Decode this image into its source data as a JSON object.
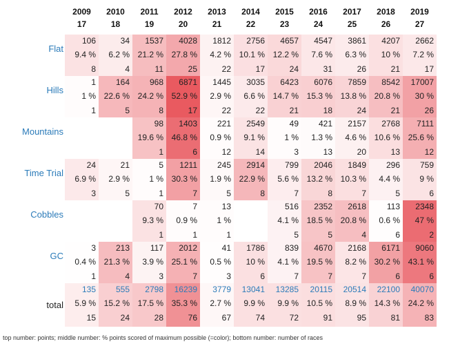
{
  "years": [
    {
      "year": "2009",
      "sub": "17"
    },
    {
      "year": "2010",
      "sub": "18"
    },
    {
      "year": "2011",
      "sub": "19"
    },
    {
      "year": "2012",
      "sub": "20"
    },
    {
      "year": "2013",
      "sub": "21"
    },
    {
      "year": "2014",
      "sub": "22"
    },
    {
      "year": "2015",
      "sub": "23"
    },
    {
      "year": "2016",
      "sub": "24"
    },
    {
      "year": "2017",
      "sub": "25"
    },
    {
      "year": "2018",
      "sub": "26"
    },
    {
      "year": "2019",
      "sub": "27"
    }
  ],
  "rows": [
    {
      "label": "Flat",
      "is_total": false,
      "cells": [
        {
          "points": "106",
          "pct": "9.4 %",
          "races": "8",
          "v": 9.4
        },
        {
          "points": "34",
          "pct": "6.2 %",
          "races": "4",
          "v": 6.2
        },
        {
          "points": "1537",
          "pct": "21.2 %",
          "races": "11",
          "v": 21.2
        },
        {
          "points": "4028",
          "pct": "27.8 %",
          "races": "25",
          "v": 27.8
        },
        {
          "points": "1812",
          "pct": "4.2 %",
          "races": "22",
          "v": 4.2
        },
        {
          "points": "2756",
          "pct": "10.1 %",
          "races": "17",
          "v": 10.1
        },
        {
          "points": "4657",
          "pct": "12.2 %",
          "races": "24",
          "v": 12.2
        },
        {
          "points": "4547",
          "pct": "7.6 %",
          "races": "31",
          "v": 7.6
        },
        {
          "points": "3861",
          "pct": "6.3 %",
          "races": "26",
          "v": 6.3
        },
        {
          "points": "4207",
          "pct": "10 %",
          "races": "21",
          "v": 10
        },
        {
          "points": "2662",
          "pct": "7.2 %",
          "races": "17",
          "v": 7.2
        }
      ]
    },
    {
      "label": "Hills",
      "is_total": false,
      "cells": [
        {
          "points": "1",
          "pct": "1 %",
          "races": "1",
          "v": 1
        },
        {
          "points": "164",
          "pct": "22.6 %",
          "races": "5",
          "v": 22.6
        },
        {
          "points": "968",
          "pct": "24.2 %",
          "races": "8",
          "v": 24.2
        },
        {
          "points": "6871",
          "pct": "52.9 %",
          "races": "17",
          "v": 52.9
        },
        {
          "points": "1445",
          "pct": "2.9 %",
          "races": "22",
          "v": 2.9
        },
        {
          "points": "3035",
          "pct": "6.6 %",
          "races": "22",
          "v": 6.6
        },
        {
          "points": "6423",
          "pct": "14.7 %",
          "races": "21",
          "v": 14.7
        },
        {
          "points": "6076",
          "pct": "15.3 %",
          "races": "18",
          "v": 15.3
        },
        {
          "points": "7859",
          "pct": "13.8 %",
          "races": "24",
          "v": 13.8
        },
        {
          "points": "8542",
          "pct": "20.8 %",
          "races": "21",
          "v": 20.8
        },
        {
          "points": "17007",
          "pct": "30 %",
          "races": "26",
          "v": 30
        }
      ]
    },
    {
      "label": "Mountains",
      "is_total": false,
      "cells": [
        {
          "points": "",
          "pct": "",
          "races": "",
          "v": null
        },
        {
          "points": "",
          "pct": "",
          "races": "",
          "v": null
        },
        {
          "points": "98",
          "pct": "19.6 %",
          "races": "1",
          "v": 19.6
        },
        {
          "points": "1403",
          "pct": "46.8 %",
          "races": "6",
          "v": 46.8
        },
        {
          "points": "221",
          "pct": "0.9 %",
          "races": "12",
          "v": 0.9
        },
        {
          "points": "2549",
          "pct": "9.1 %",
          "races": "14",
          "v": 9.1
        },
        {
          "points": "49",
          "pct": "1 %",
          "races": "3",
          "v": 1
        },
        {
          "points": "421",
          "pct": "1.3 %",
          "races": "13",
          "v": 1.3
        },
        {
          "points": "2157",
          "pct": "4.6 %",
          "races": "20",
          "v": 4.6
        },
        {
          "points": "2768",
          "pct": "10.6 %",
          "races": "13",
          "v": 10.6
        },
        {
          "points": "7111",
          "pct": "25.6 %",
          "races": "12",
          "v": 25.6
        }
      ]
    },
    {
      "label": "Time Trial",
      "is_total": false,
      "cells": [
        {
          "points": "24",
          "pct": "6.9 %",
          "races": "3",
          "v": 6.9
        },
        {
          "points": "21",
          "pct": "2.9 %",
          "races": "5",
          "v": 2.9
        },
        {
          "points": "5",
          "pct": "1 %",
          "races": "1",
          "v": 1
        },
        {
          "points": "1211",
          "pct": "30.3 %",
          "races": "7",
          "v": 30.3
        },
        {
          "points": "245",
          "pct": "1.9 %",
          "races": "5",
          "v": 1.9
        },
        {
          "points": "2914",
          "pct": "22.9 %",
          "races": "8",
          "v": 22.9
        },
        {
          "points": "799",
          "pct": "5.6 %",
          "races": "7",
          "v": 5.6
        },
        {
          "points": "2046",
          "pct": "13.2 %",
          "races": "8",
          "v": 13.2
        },
        {
          "points": "1849",
          "pct": "10.3 %",
          "races": "7",
          "v": 10.3
        },
        {
          "points": "296",
          "pct": "4.4 %",
          "races": "5",
          "v": 4.4
        },
        {
          "points": "759",
          "pct": "9 %",
          "races": "6",
          "v": 9
        }
      ]
    },
    {
      "label": "Cobbles",
      "is_total": false,
      "cells": [
        {
          "points": "",
          "pct": "",
          "races": "",
          "v": null
        },
        {
          "points": "",
          "pct": "",
          "races": "",
          "v": null
        },
        {
          "points": "70",
          "pct": "9.3 %",
          "races": "1",
          "v": 9.3
        },
        {
          "points": "7",
          "pct": "0.9 %",
          "races": "1",
          "v": 0.9
        },
        {
          "points": "13",
          "pct": "1 %",
          "races": "1",
          "v": 1
        },
        {
          "points": "",
          "pct": "",
          "races": "",
          "v": null
        },
        {
          "points": "516",
          "pct": "4.1 %",
          "races": "5",
          "v": 4.1
        },
        {
          "points": "2352",
          "pct": "18.5 %",
          "races": "5",
          "v": 18.5
        },
        {
          "points": "2618",
          "pct": "20.8 %",
          "races": "4",
          "v": 20.8
        },
        {
          "points": "113",
          "pct": "0.6 %",
          "races": "6",
          "v": 0.6
        },
        {
          "points": "2348",
          "pct": "47 %",
          "races": "2",
          "v": 47
        }
      ]
    },
    {
      "label": "GC",
      "is_total": false,
      "cells": [
        {
          "points": "3",
          "pct": "0.4 %",
          "races": "1",
          "v": 0.4
        },
        {
          "points": "213",
          "pct": "21.3 %",
          "races": "4",
          "v": 21.3
        },
        {
          "points": "117",
          "pct": "3.9 %",
          "races": "3",
          "v": 3.9
        },
        {
          "points": "2012",
          "pct": "25.1 %",
          "races": "7",
          "v": 25.1
        },
        {
          "points": "41",
          "pct": "0.5 %",
          "races": "3",
          "v": 0.5
        },
        {
          "points": "1786",
          "pct": "10 %",
          "races": "6",
          "v": 10
        },
        {
          "points": "839",
          "pct": "4.1 %",
          "races": "7",
          "v": 4.1
        },
        {
          "points": "4670",
          "pct": "19.5 %",
          "races": "7",
          "v": 19.5
        },
        {
          "points": "2168",
          "pct": "8.2 %",
          "races": "7",
          "v": 8.2
        },
        {
          "points": "6171",
          "pct": "30.2 %",
          "races": "6",
          "v": 30.2
        },
        {
          "points": "9060",
          "pct": "43.1 %",
          "races": "6",
          "v": 43.1
        }
      ]
    },
    {
      "label": "total",
      "is_total": true,
      "cells": [
        {
          "points": "135",
          "pct": "5.9 %",
          "races": "15",
          "v": 5.9
        },
        {
          "points": "555",
          "pct": "15.2 %",
          "races": "24",
          "v": 15.2
        },
        {
          "points": "2798",
          "pct": "17.5 %",
          "races": "28",
          "v": 17.5
        },
        {
          "points": "16239",
          "pct": "35.3 %",
          "races": "76",
          "v": 35.3
        },
        {
          "points": "3779",
          "pct": "2.7 %",
          "races": "67",
          "v": 2.7
        },
        {
          "points": "13041",
          "pct": "9.9 %",
          "races": "74",
          "v": 9.9
        },
        {
          "points": "13285",
          "pct": "9.9 %",
          "races": "72",
          "v": 9.9
        },
        {
          "points": "20115",
          "pct": "10.5 %",
          "races": "91",
          "v": 10.5
        },
        {
          "points": "20514",
          "pct": "8.9 %",
          "races": "95",
          "v": 8.9
        },
        {
          "points": "22100",
          "pct": "14.3 %",
          "races": "81",
          "v": 14.3
        },
        {
          "points": "40070",
          "pct": "24.2 %",
          "races": "83",
          "v": 24.2
        }
      ]
    }
  ],
  "footnote": "top number: points; middle number: % points scored of maximum possible (=color); bottom number: number of races",
  "colors": {
    "heat_base": "#ffffff",
    "heat_max": "#e8535a",
    "link": "#2b7bb9"
  }
}
